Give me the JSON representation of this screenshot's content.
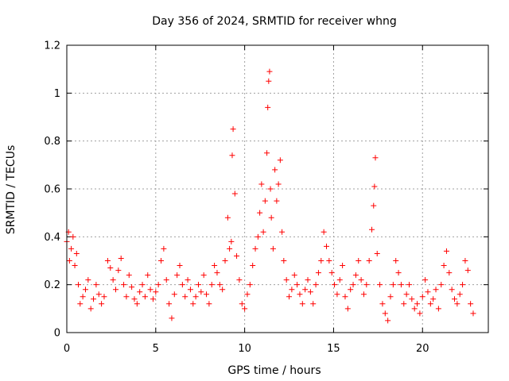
{
  "chart_data": {
    "type": "scatter",
    "title": "Day 356 of 2024, SRMTID for receiver whng",
    "xlabel": "GPS time / hours",
    "ylabel": "SRMTID / TECUs",
    "xlim": [
      0,
      23.7
    ],
    "ylim": [
      0,
      1.2
    ],
    "x_ticks": [
      0,
      5,
      10,
      15,
      20
    ],
    "y_ticks": [
      0,
      0.2,
      0.4,
      0.6,
      0.8,
      1,
      1.2
    ],
    "x_tick_labels": [
      "0",
      "5",
      "10",
      "15",
      "20"
    ],
    "y_tick_labels": [
      "0",
      "0.2",
      "0.4",
      "0.6",
      "0.8",
      "1",
      "1.2"
    ],
    "grid": true,
    "marker": "+",
    "color": "#ff0000",
    "series": [
      {
        "name": "SRMTID",
        "x": [
          0.0,
          0.1,
          0.15,
          0.25,
          0.35,
          0.45,
          0.55,
          0.65,
          0.75,
          0.9,
          1.05,
          1.2,
          1.35,
          1.5,
          1.65,
          1.8,
          1.95,
          2.1,
          2.3,
          2.45,
          2.6,
          2.75,
          2.9,
          3.05,
          3.2,
          3.35,
          3.5,
          3.65,
          3.8,
          3.95,
          4.1,
          4.25,
          4.4,
          4.55,
          4.7,
          4.85,
          5.0,
          5.15,
          5.3,
          5.45,
          5.6,
          5.75,
          5.9,
          6.05,
          6.2,
          6.35,
          6.5,
          6.65,
          6.8,
          6.95,
          7.1,
          7.25,
          7.4,
          7.55,
          7.7,
          7.85,
          8.0,
          8.15,
          8.3,
          8.45,
          8.6,
          8.75,
          8.9,
          9.05,
          9.15,
          9.25,
          9.3,
          9.35,
          9.45,
          9.55,
          9.7,
          9.85,
          10.0,
          10.15,
          10.3,
          10.45,
          10.6,
          10.75,
          10.85,
          10.95,
          11.05,
          11.15,
          11.25,
          11.3,
          11.35,
          11.4,
          11.45,
          11.5,
          11.6,
          11.7,
          11.8,
          11.9,
          12.0,
          12.1,
          12.2,
          12.35,
          12.5,
          12.65,
          12.8,
          12.95,
          13.1,
          13.25,
          13.4,
          13.55,
          13.7,
          13.85,
          14.0,
          14.15,
          14.3,
          14.45,
          14.6,
          14.75,
          14.9,
          15.05,
          15.2,
          15.35,
          15.5,
          15.65,
          15.8,
          15.95,
          16.1,
          16.25,
          16.4,
          16.55,
          16.7,
          16.85,
          17.0,
          17.15,
          17.25,
          17.3,
          17.35,
          17.45,
          17.6,
          17.75,
          17.9,
          18.05,
          18.2,
          18.35,
          18.5,
          18.65,
          18.8,
          18.95,
          19.1,
          19.25,
          19.4,
          19.55,
          19.7,
          19.85,
          20.0,
          20.15,
          20.3,
          20.45,
          20.6,
          20.75,
          20.9,
          21.05,
          21.2,
          21.35,
          21.5,
          21.65,
          21.8,
          21.95,
          22.1,
          22.25,
          22.4,
          22.55,
          22.7,
          22.85
        ],
        "y": [
          0.38,
          0.42,
          0.3,
          0.35,
          0.4,
          0.28,
          0.33,
          0.2,
          0.12,
          0.15,
          0.18,
          0.22,
          0.1,
          0.14,
          0.2,
          0.16,
          0.12,
          0.15,
          0.3,
          0.27,
          0.22,
          0.18,
          0.26,
          0.31,
          0.2,
          0.15,
          0.24,
          0.19,
          0.14,
          0.12,
          0.17,
          0.2,
          0.15,
          0.24,
          0.18,
          0.14,
          0.17,
          0.2,
          0.3,
          0.35,
          0.22,
          0.12,
          0.06,
          0.16,
          0.24,
          0.28,
          0.2,
          0.15,
          0.22,
          0.18,
          0.12,
          0.15,
          0.2,
          0.17,
          0.24,
          0.16,
          0.12,
          0.2,
          0.28,
          0.25,
          0.2,
          0.18,
          0.3,
          0.48,
          0.35,
          0.38,
          0.74,
          0.85,
          0.58,
          0.32,
          0.22,
          0.12,
          0.1,
          0.16,
          0.2,
          0.28,
          0.35,
          0.4,
          0.5,
          0.62,
          0.42,
          0.55,
          0.75,
          0.94,
          1.05,
          1.09,
          0.6,
          0.48,
          0.35,
          0.68,
          0.55,
          0.62,
          0.72,
          0.42,
          0.3,
          0.22,
          0.15,
          0.18,
          0.24,
          0.2,
          0.16,
          0.12,
          0.18,
          0.22,
          0.17,
          0.12,
          0.2,
          0.25,
          0.3,
          0.42,
          0.36,
          0.3,
          0.25,
          0.2,
          0.16,
          0.22,
          0.28,
          0.15,
          0.1,
          0.18,
          0.2,
          0.24,
          0.3,
          0.22,
          0.16,
          0.2,
          0.3,
          0.43,
          0.53,
          0.61,
          0.73,
          0.33,
          0.2,
          0.12,
          0.08,
          0.05,
          0.15,
          0.2,
          0.3,
          0.25,
          0.2,
          0.12,
          0.16,
          0.2,
          0.14,
          0.1,
          0.12,
          0.08,
          0.15,
          0.22,
          0.17,
          0.12,
          0.14,
          0.18,
          0.1,
          0.2,
          0.28,
          0.34,
          0.25,
          0.18,
          0.14,
          0.12,
          0.16,
          0.2,
          0.3,
          0.26,
          0.12,
          0.08
        ]
      }
    ]
  }
}
